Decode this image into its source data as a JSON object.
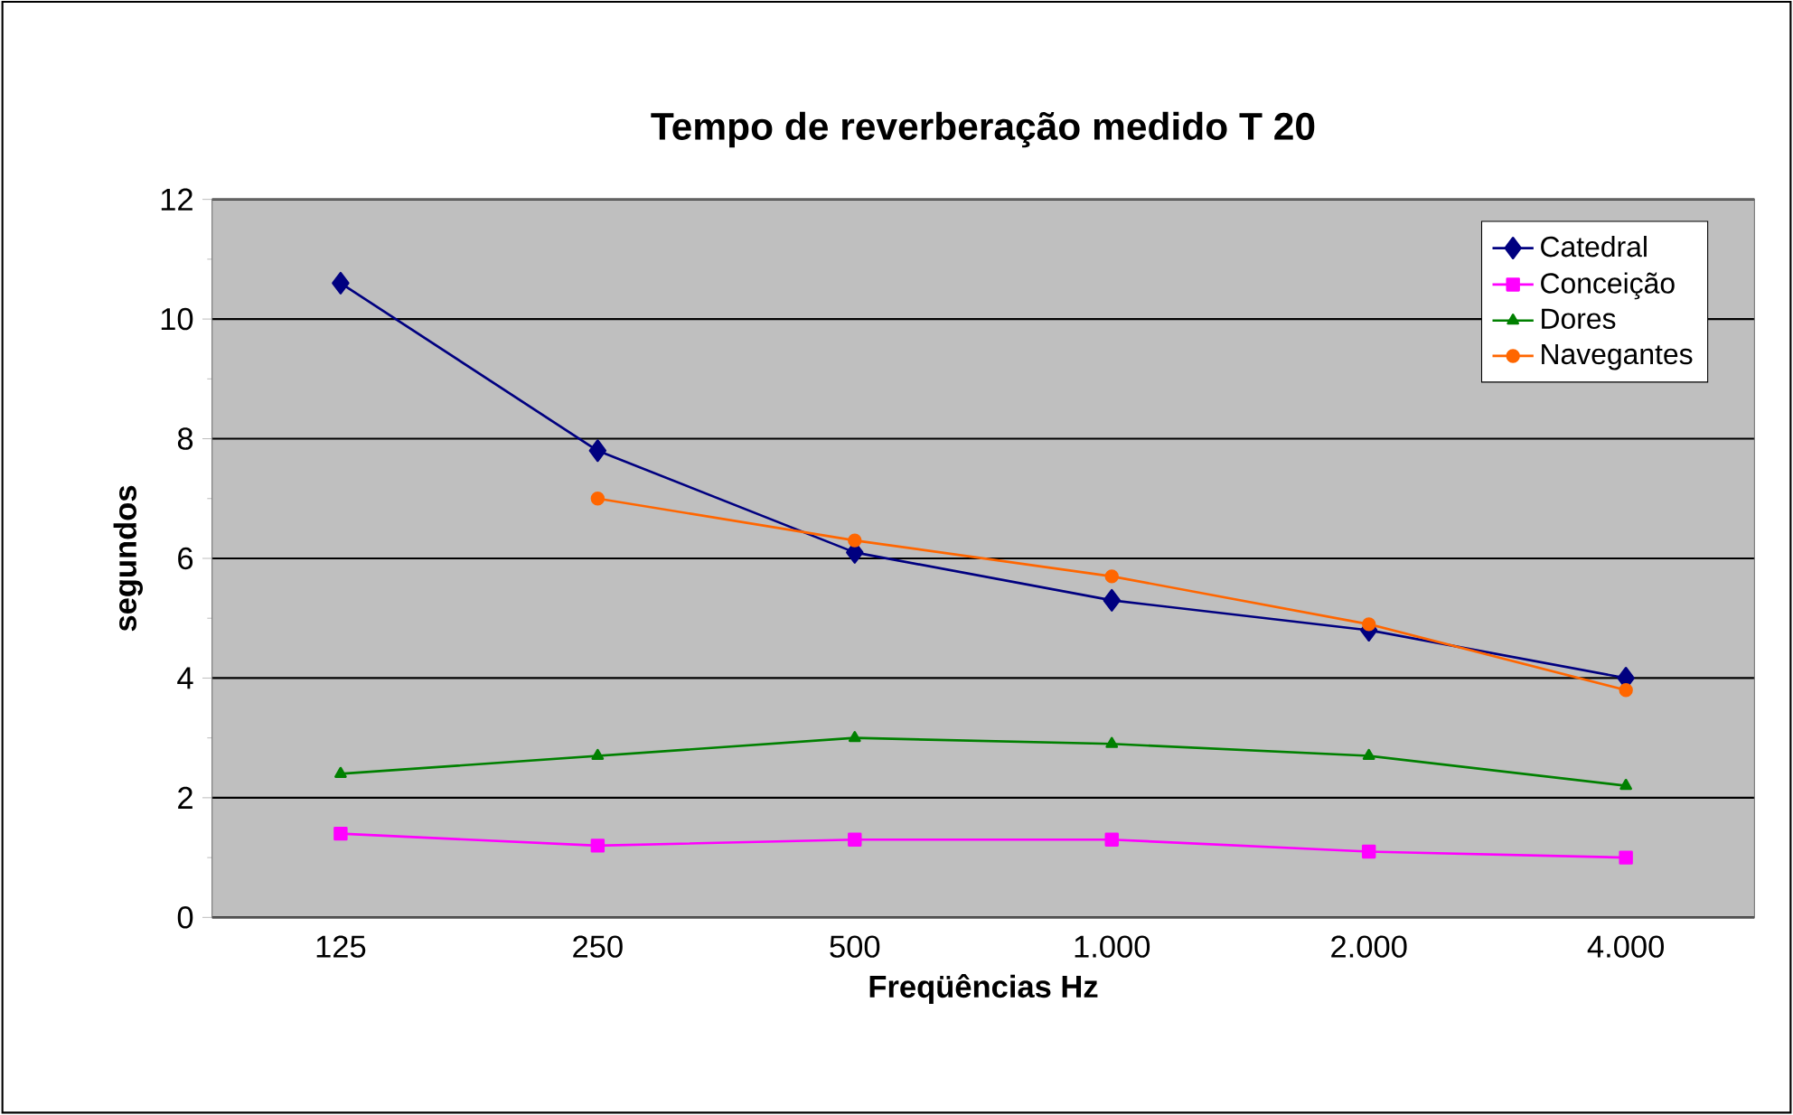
{
  "chart_data": {
    "type": "line",
    "title": "Tempo de reverberação medido T 20",
    "xlabel": "Freqüências Hz",
    "ylabel": "segundos",
    "categories": [
      "125",
      "250",
      "500",
      "1.000",
      "2.000",
      "4.000"
    ],
    "series": [
      {
        "name": "Catedral",
        "color": "#000080",
        "marker": "diamond",
        "values": [
          10.6,
          7.8,
          6.1,
          5.3,
          4.8,
          4.0
        ]
      },
      {
        "name": "Conceição",
        "color": "#ff00ff",
        "marker": "square",
        "values": [
          1.4,
          1.2,
          1.3,
          1.3,
          1.1,
          1.0
        ]
      },
      {
        "name": "Dores",
        "color": "#008000",
        "marker": "triangle",
        "values": [
          2.4,
          2.7,
          3.0,
          2.9,
          2.7,
          2.2
        ]
      },
      {
        "name": "Navegantes",
        "color": "#ff6600",
        "marker": "circle",
        "values": [
          null,
          7.0,
          6.3,
          5.7,
          4.9,
          3.8
        ]
      }
    ],
    "ylim": [
      0,
      12
    ],
    "yticks": [
      0,
      2,
      4,
      6,
      8,
      10,
      12
    ],
    "grid": "y",
    "legend": "top right",
    "line_style": "solid"
  }
}
